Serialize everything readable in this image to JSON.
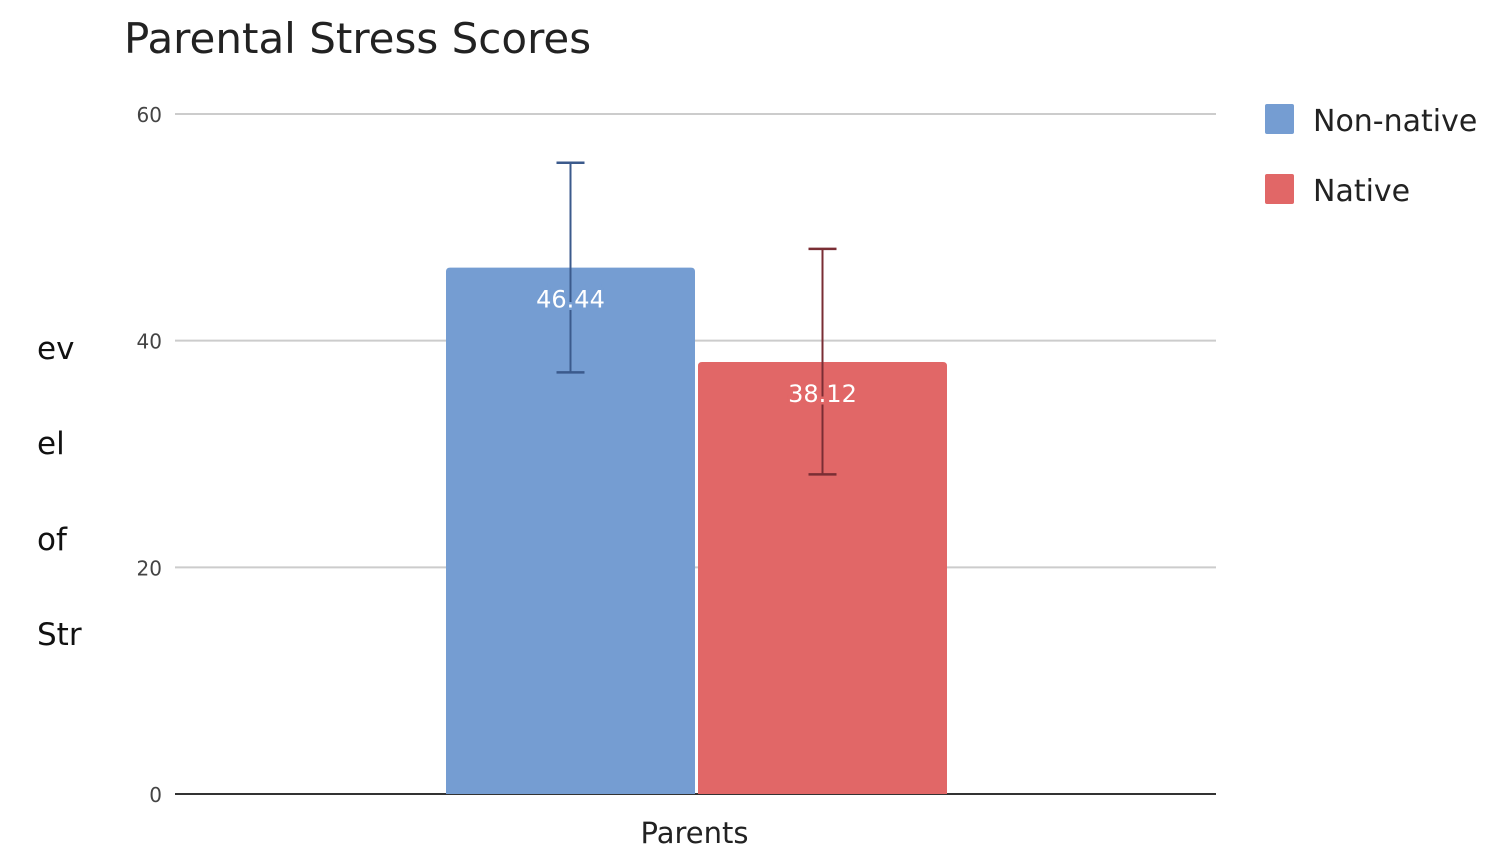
{
  "chart_data": {
    "type": "bar",
    "title": "Parental Stress Scores",
    "xlabel": "",
    "ylabel_fragments": [
      "ev",
      "el",
      "of",
      "Str"
    ],
    "categories": [
      "Parents"
    ],
    "ylim": [
      0,
      60
    ],
    "yticks": [
      0,
      20,
      40,
      60
    ],
    "grid": true,
    "legend_position": "right",
    "series": [
      {
        "name": "Non-native",
        "values": [
          46.44
        ],
        "labels": [
          "46.44"
        ],
        "error_low": [
          37.2
        ],
        "error_high": [
          55.7
        ],
        "color": "#759dd2",
        "error_color": "#3b5a8c"
      },
      {
        "name": "Native",
        "values": [
          38.12
        ],
        "labels": [
          "38.12"
        ],
        "error_low": [
          28.2
        ],
        "error_high": [
          48.1
        ],
        "color": "#e16767",
        "error_color": "#7a2e34"
      }
    ]
  }
}
